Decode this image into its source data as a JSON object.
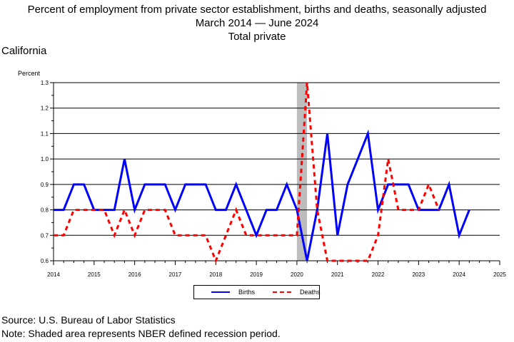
{
  "title": {
    "line1": "Percent of employment from private sector establishment, births and deaths, seasonally adjusted",
    "line2": "March 2014  — June 2024",
    "line3": "Total private"
  },
  "region": "California",
  "footer": {
    "source": "Source: U.S. Bureau of Labor Statistics",
    "note": "Note: Shaded area represents NBER defined recession period."
  },
  "colors": {
    "births": "#0000ff",
    "deaths": "#ff0000",
    "recession": "#bdbdbd"
  },
  "chart_data": {
    "type": "line",
    "ylabel": "Percent",
    "ylim": [
      0.6,
      1.3
    ],
    "xlim": [
      2014,
      2025
    ],
    "yticks": [
      "0.6",
      "0.7",
      "0.8",
      "0.9",
      "1.0",
      "1.1",
      "1.2",
      "1.3"
    ],
    "xticks": [
      "2014",
      "2015",
      "2016",
      "2017",
      "2018",
      "2019",
      "2020",
      "2021",
      "2022",
      "2023",
      "2024",
      "2025"
    ],
    "grid": "horizontal",
    "legend_position": "bottom",
    "recession": [
      2020.0,
      2020.25
    ],
    "x": [
      2014.0,
      2014.25,
      2014.5,
      2014.75,
      2015.0,
      2015.25,
      2015.5,
      2015.75,
      2016.0,
      2016.25,
      2016.5,
      2016.75,
      2017.0,
      2017.25,
      2017.5,
      2017.75,
      2018.0,
      2018.25,
      2018.5,
      2018.75,
      2019.0,
      2019.25,
      2019.5,
      2019.75,
      2020.0,
      2020.25,
      2020.5,
      2020.75,
      2021.0,
      2021.25,
      2021.5,
      2021.75,
      2022.0,
      2022.25,
      2022.5,
      2022.75,
      2023.0,
      2023.25,
      2023.5,
      2023.75,
      2024.0,
      2024.25
    ],
    "series": [
      {
        "name": "Births",
        "values": [
          0.8,
          0.8,
          0.9,
          0.9,
          0.8,
          0.8,
          0.8,
          1.0,
          0.8,
          0.9,
          0.9,
          0.9,
          0.8,
          0.9,
          0.9,
          0.9,
          0.8,
          0.8,
          0.9,
          0.8,
          0.7,
          0.8,
          0.8,
          0.9,
          0.8,
          0.6,
          0.8,
          1.1,
          0.7,
          0.9,
          1.0,
          1.1,
          0.8,
          0.9,
          0.9,
          0.9,
          0.8,
          0.8,
          0.8,
          0.9,
          0.7,
          0.8
        ]
      },
      {
        "name": "Deaths",
        "values": [
          0.7,
          0.7,
          0.8,
          0.8,
          0.8,
          0.8,
          0.7,
          0.8,
          0.7,
          0.8,
          0.8,
          0.8,
          0.7,
          0.7,
          0.7,
          0.7,
          0.6,
          0.7,
          0.8,
          0.7,
          0.7,
          0.7,
          0.7,
          0.7,
          0.7,
          1.3,
          0.8,
          0.6,
          0.6,
          0.6,
          0.6,
          0.6,
          0.7,
          1.0,
          0.8,
          0.8,
          0.8,
          0.9,
          0.8,
          null,
          null,
          null
        ]
      }
    ]
  }
}
